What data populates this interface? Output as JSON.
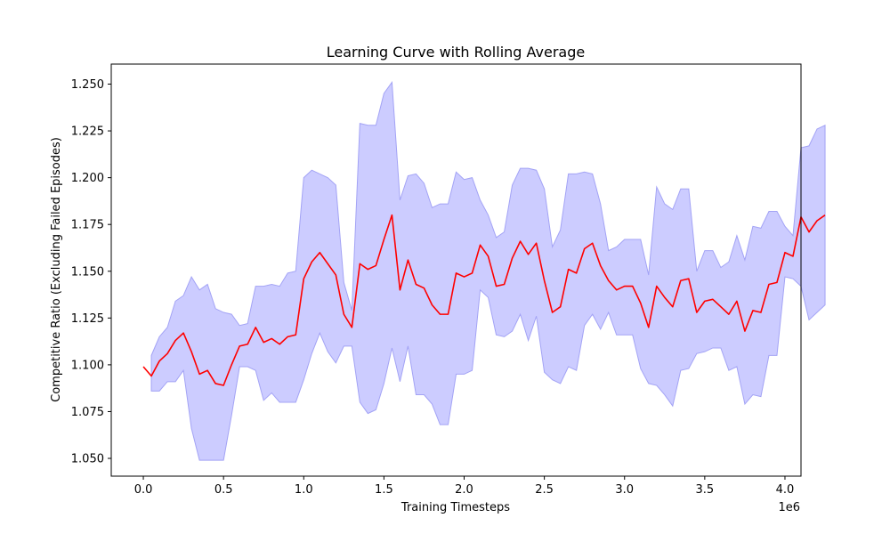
{
  "chart_data": {
    "type": "line",
    "title": "Learning Curve with Rolling Average",
    "xlabel": "Training Timesteps",
    "ylabel": "Competitive Ratio (Excluding Failed Episodes)",
    "x_scale_label": "1e6",
    "xlim": [
      -0.2,
      4.1
    ],
    "ylim": [
      1.0405,
      1.2607
    ],
    "x_ticks": [
      0.0,
      0.5,
      1.0,
      1.5,
      2.0,
      2.5,
      3.0,
      3.5,
      4.0
    ],
    "x_tick_labels": [
      "0.0",
      "0.5",
      "1.0",
      "1.5",
      "2.0",
      "2.5",
      "3.0",
      "3.5",
      "4.0"
    ],
    "y_ticks": [
      1.05,
      1.075,
      1.1,
      1.125,
      1.15,
      1.175,
      1.2,
      1.225,
      1.25
    ],
    "y_tick_labels": [
      "1.050",
      "1.075",
      "1.100",
      "1.125",
      "1.150",
      "1.175",
      "1.200",
      "1.225",
      "1.250"
    ],
    "grid": false,
    "colors": {
      "line": "#ff0000",
      "band": "#ccccff",
      "band_edge": "#a3a3f5"
    },
    "series": [
      {
        "kind": "line",
        "points": [
          [
            0.0,
            1.099
          ],
          [
            0.05,
            1.094
          ],
          [
            0.1,
            1.102
          ],
          [
            0.15,
            1.106
          ],
          [
            0.2,
            1.113
          ],
          [
            0.25,
            1.117
          ],
          [
            0.3,
            1.107
          ],
          [
            0.35,
            1.095
          ],
          [
            0.4,
            1.097
          ],
          [
            0.45,
            1.09
          ],
          [
            0.5,
            1.089
          ],
          [
            0.55,
            1.1
          ],
          [
            0.6,
            1.11
          ],
          [
            0.65,
            1.111
          ],
          [
            0.7,
            1.12
          ],
          [
            0.75,
            1.112
          ],
          [
            0.8,
            1.114
          ],
          [
            0.85,
            1.111
          ],
          [
            0.9,
            1.115
          ],
          [
            0.95,
            1.116
          ],
          [
            1.0,
            1.146
          ],
          [
            1.05,
            1.155
          ],
          [
            1.1,
            1.16
          ],
          [
            1.15,
            1.154
          ],
          [
            1.2,
            1.148
          ],
          [
            1.25,
            1.127
          ],
          [
            1.3,
            1.12
          ],
          [
            1.35,
            1.154
          ],
          [
            1.4,
            1.151
          ],
          [
            1.45,
            1.153
          ],
          [
            1.5,
            1.167
          ],
          [
            1.55,
            1.18
          ],
          [
            1.6,
            1.14
          ],
          [
            1.65,
            1.156
          ],
          [
            1.7,
            1.143
          ],
          [
            1.75,
            1.141
          ],
          [
            1.8,
            1.132
          ],
          [
            1.85,
            1.127
          ],
          [
            1.9,
            1.127
          ],
          [
            1.95,
            1.149
          ],
          [
            2.0,
            1.147
          ],
          [
            2.05,
            1.149
          ],
          [
            2.1,
            1.164
          ],
          [
            2.15,
            1.158
          ],
          [
            2.2,
            1.142
          ],
          [
            2.25,
            1.143
          ],
          [
            2.3,
            1.157
          ],
          [
            2.35,
            1.166
          ],
          [
            2.4,
            1.159
          ],
          [
            2.45,
            1.165
          ],
          [
            2.5,
            1.145
          ],
          [
            2.55,
            1.128
          ],
          [
            2.6,
            1.131
          ],
          [
            2.65,
            1.151
          ],
          [
            2.7,
            1.149
          ],
          [
            2.75,
            1.162
          ],
          [
            2.8,
            1.165
          ],
          [
            2.85,
            1.153
          ],
          [
            2.9,
            1.145
          ],
          [
            2.95,
            1.14
          ],
          [
            3.0,
            1.142
          ],
          [
            3.05,
            1.142
          ],
          [
            3.1,
            1.133
          ],
          [
            3.15,
            1.12
          ],
          [
            3.2,
            1.142
          ],
          [
            3.25,
            1.136
          ],
          [
            3.3,
            1.131
          ],
          [
            3.35,
            1.145
          ],
          [
            3.4,
            1.146
          ],
          [
            3.45,
            1.128
          ],
          [
            3.5,
            1.134
          ],
          [
            3.55,
            1.135
          ],
          [
            3.6,
            1.131
          ],
          [
            3.65,
            1.127
          ],
          [
            3.7,
            1.134
          ],
          [
            3.75,
            1.118
          ],
          [
            3.8,
            1.129
          ],
          [
            3.85,
            1.128
          ],
          [
            3.9,
            1.143
          ],
          [
            3.95,
            1.144
          ],
          [
            4.0,
            1.16
          ],
          [
            4.05,
            1.158
          ],
          [
            4.1,
            1.179
          ],
          [
            4.15,
            1.171
          ],
          [
            4.2,
            1.177
          ],
          [
            4.25,
            1.18
          ]
        ]
      },
      {
        "kind": "band",
        "upper": [
          [
            0.05,
            1.105
          ],
          [
            0.1,
            1.115
          ],
          [
            0.15,
            1.12
          ],
          [
            0.2,
            1.134
          ],
          [
            0.25,
            1.137
          ],
          [
            0.3,
            1.147
          ],
          [
            0.35,
            1.14
          ],
          [
            0.4,
            1.143
          ],
          [
            0.45,
            1.13
          ],
          [
            0.5,
            1.128
          ],
          [
            0.55,
            1.127
          ],
          [
            0.6,
            1.121
          ],
          [
            0.65,
            1.122
          ],
          [
            0.7,
            1.142
          ],
          [
            0.75,
            1.142
          ],
          [
            0.8,
            1.143
          ],
          [
            0.85,
            1.142
          ],
          [
            0.9,
            1.149
          ],
          [
            0.95,
            1.15
          ],
          [
            1.0,
            1.2
          ],
          [
            1.05,
            1.204
          ],
          [
            1.1,
            1.202
          ],
          [
            1.15,
            1.2
          ],
          [
            1.2,
            1.196
          ],
          [
            1.25,
            1.144
          ],
          [
            1.3,
            1.129
          ],
          [
            1.35,
            1.229
          ],
          [
            1.4,
            1.228
          ],
          [
            1.45,
            1.228
          ],
          [
            1.5,
            1.245
          ],
          [
            1.55,
            1.251
          ],
          [
            1.6,
            1.188
          ],
          [
            1.65,
            1.201
          ],
          [
            1.7,
            1.202
          ],
          [
            1.75,
            1.197
          ],
          [
            1.8,
            1.184
          ],
          [
            1.85,
            1.186
          ],
          [
            1.9,
            1.186
          ],
          [
            1.95,
            1.203
          ],
          [
            2.0,
            1.199
          ],
          [
            2.05,
            1.2
          ],
          [
            2.1,
            1.188
          ],
          [
            2.15,
            1.18
          ],
          [
            2.2,
            1.168
          ],
          [
            2.25,
            1.171
          ],
          [
            2.3,
            1.196
          ],
          [
            2.35,
            1.205
          ],
          [
            2.4,
            1.205
          ],
          [
            2.45,
            1.204
          ],
          [
            2.5,
            1.194
          ],
          [
            2.55,
            1.163
          ],
          [
            2.6,
            1.172
          ],
          [
            2.65,
            1.202
          ],
          [
            2.7,
            1.202
          ],
          [
            2.75,
            1.203
          ],
          [
            2.8,
            1.202
          ],
          [
            2.85,
            1.186
          ],
          [
            2.9,
            1.161
          ],
          [
            2.95,
            1.163
          ],
          [
            3.0,
            1.167
          ],
          [
            3.05,
            1.167
          ],
          [
            3.1,
            1.167
          ],
          [
            3.15,
            1.148
          ],
          [
            3.2,
            1.195
          ],
          [
            3.25,
            1.186
          ],
          [
            3.3,
            1.183
          ],
          [
            3.35,
            1.194
          ],
          [
            3.4,
            1.194
          ],
          [
            3.45,
            1.15
          ],
          [
            3.5,
            1.161
          ],
          [
            3.55,
            1.161
          ],
          [
            3.6,
            1.152
          ],
          [
            3.65,
            1.155
          ],
          [
            3.7,
            1.169
          ],
          [
            3.75,
            1.156
          ],
          [
            3.8,
            1.174
          ],
          [
            3.85,
            1.173
          ],
          [
            3.9,
            1.182
          ],
          [
            3.95,
            1.182
          ],
          [
            4.0,
            1.174
          ],
          [
            4.05,
            1.169
          ],
          [
            4.1,
            1.216
          ],
          [
            4.15,
            1.217
          ],
          [
            4.2,
            1.226
          ],
          [
            4.25,
            1.228
          ]
        ],
        "lower": [
          [
            0.05,
            1.086
          ],
          [
            0.1,
            1.086
          ],
          [
            0.15,
            1.091
          ],
          [
            0.2,
            1.091
          ],
          [
            0.25,
            1.097
          ],
          [
            0.3,
            1.066
          ],
          [
            0.35,
            1.049
          ],
          [
            0.4,
            1.049
          ],
          [
            0.45,
            1.049
          ],
          [
            0.5,
            1.049
          ],
          [
            0.55,
            1.073
          ],
          [
            0.6,
            1.099
          ],
          [
            0.65,
            1.099
          ],
          [
            0.7,
            1.097
          ],
          [
            0.75,
            1.081
          ],
          [
            0.8,
            1.085
          ],
          [
            0.85,
            1.08
          ],
          [
            0.9,
            1.08
          ],
          [
            0.95,
            1.08
          ],
          [
            1.0,
            1.092
          ],
          [
            1.05,
            1.106
          ],
          [
            1.1,
            1.117
          ],
          [
            1.15,
            1.107
          ],
          [
            1.2,
            1.101
          ],
          [
            1.25,
            1.11
          ],
          [
            1.3,
            1.11
          ],
          [
            1.35,
            1.08
          ],
          [
            1.4,
            1.074
          ],
          [
            1.45,
            1.076
          ],
          [
            1.5,
            1.09
          ],
          [
            1.55,
            1.109
          ],
          [
            1.6,
            1.091
          ],
          [
            1.65,
            1.11
          ],
          [
            1.7,
            1.084
          ],
          [
            1.75,
            1.084
          ],
          [
            1.8,
            1.079
          ],
          [
            1.85,
            1.068
          ],
          [
            1.9,
            1.068
          ],
          [
            1.95,
            1.095
          ],
          [
            2.0,
            1.095
          ],
          [
            2.05,
            1.097
          ],
          [
            2.1,
            1.14
          ],
          [
            2.15,
            1.136
          ],
          [
            2.2,
            1.116
          ],
          [
            2.25,
            1.115
          ],
          [
            2.3,
            1.118
          ],
          [
            2.35,
            1.127
          ],
          [
            2.4,
            1.113
          ],
          [
            2.45,
            1.126
          ],
          [
            2.5,
            1.096
          ],
          [
            2.55,
            1.092
          ],
          [
            2.6,
            1.09
          ],
          [
            2.65,
            1.099
          ],
          [
            2.7,
            1.097
          ],
          [
            2.75,
            1.121
          ],
          [
            2.8,
            1.127
          ],
          [
            2.85,
            1.119
          ],
          [
            2.9,
            1.128
          ],
          [
            2.95,
            1.116
          ],
          [
            3.0,
            1.116
          ],
          [
            3.05,
            1.116
          ],
          [
            3.1,
            1.098
          ],
          [
            3.15,
            1.09
          ],
          [
            3.2,
            1.089
          ],
          [
            3.25,
            1.084
          ],
          [
            3.3,
            1.078
          ],
          [
            3.35,
            1.097
          ],
          [
            3.4,
            1.098
          ],
          [
            3.45,
            1.106
          ],
          [
            3.5,
            1.107
          ],
          [
            3.55,
            1.109
          ],
          [
            3.6,
            1.109
          ],
          [
            3.65,
            1.097
          ],
          [
            3.7,
            1.099
          ],
          [
            3.75,
            1.079
          ],
          [
            3.8,
            1.084
          ],
          [
            3.85,
            1.083
          ],
          [
            3.9,
            1.105
          ],
          [
            3.95,
            1.105
          ],
          [
            4.0,
            1.147
          ],
          [
            4.05,
            1.146
          ],
          [
            4.1,
            1.142
          ],
          [
            4.15,
            1.124
          ],
          [
            4.2,
            1.128
          ],
          [
            4.25,
            1.132
          ]
        ]
      }
    ]
  }
}
